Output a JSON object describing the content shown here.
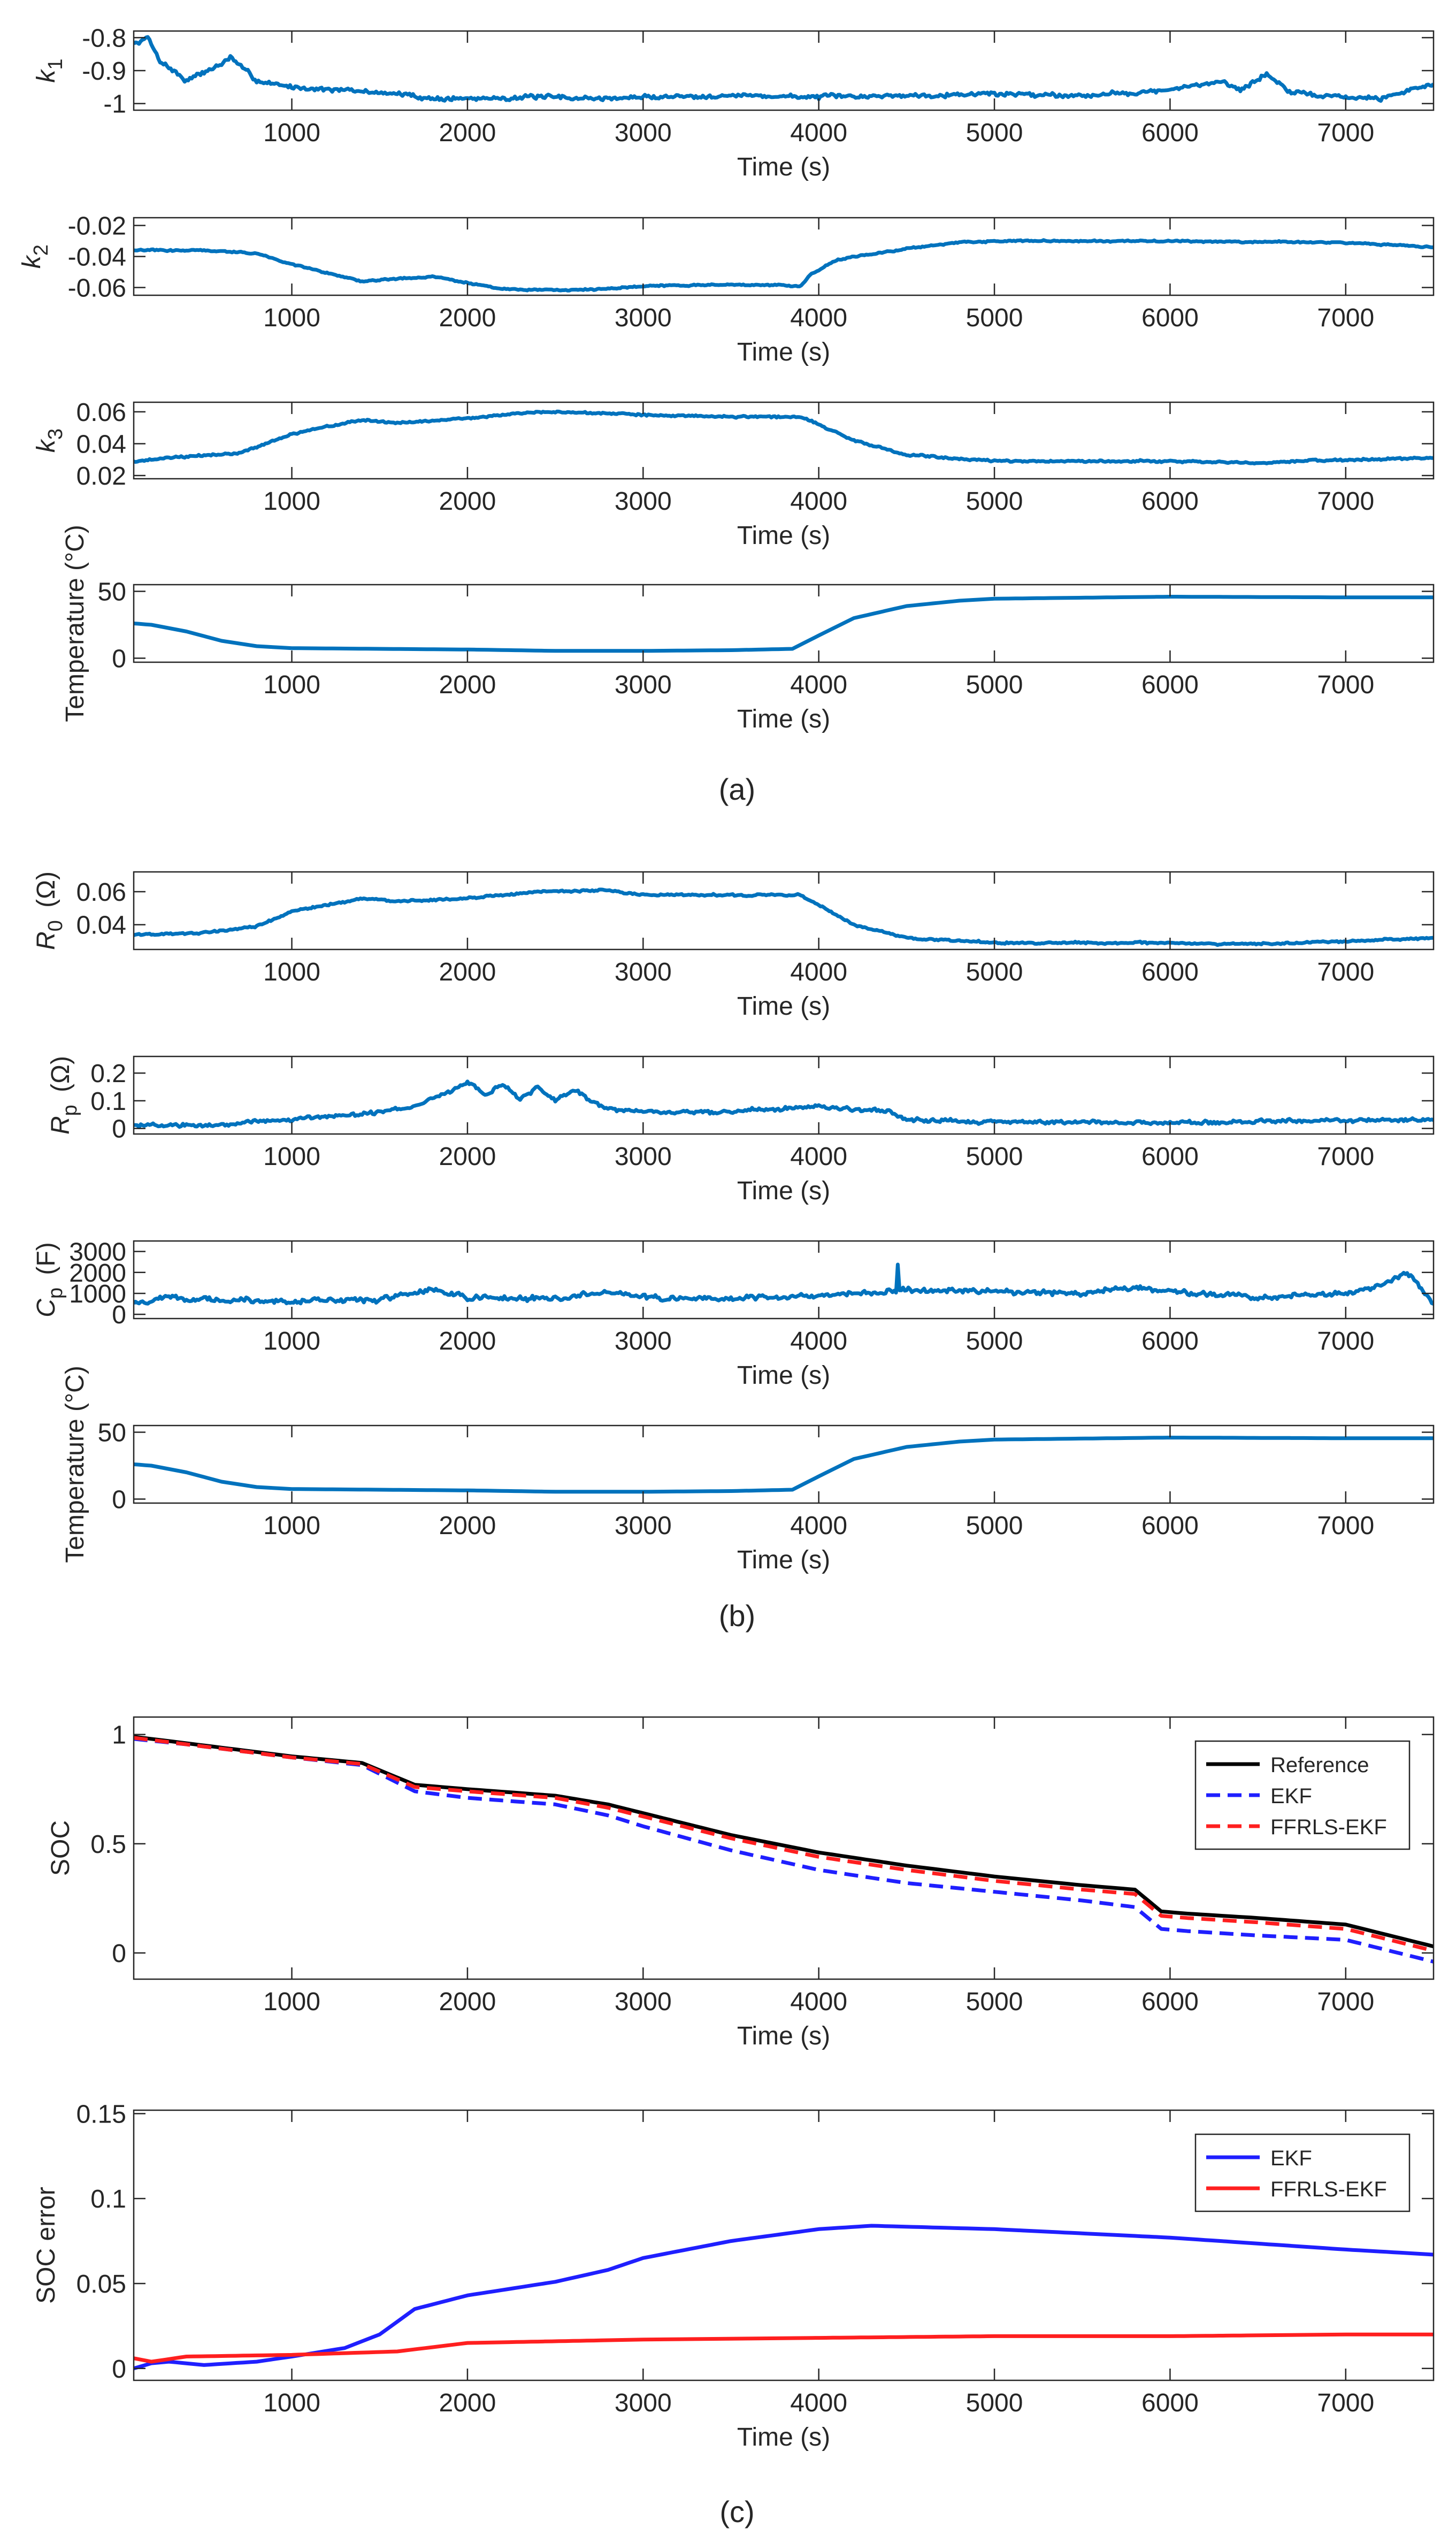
{
  "figure_labels": [
    "(a)",
    "(b)",
    "(c)"
  ],
  "colors": {
    "series_blue": "#0072BD",
    "axis": "#262626",
    "reference": "#000000",
    "ekf": "#1f1fff",
    "ffrls": "#ff1f1f"
  },
  "chart_data": [
    {
      "id": "k1",
      "type": "line",
      "panel": "(a)",
      "xlabel": "Time (s)",
      "ylabel": "k",
      "ylabel_sub": "1",
      "ylabel_unit": "",
      "xlim": [
        100,
        7500
      ],
      "ylim": [
        -1.02,
        -0.78
      ],
      "xticks": [
        1000,
        2000,
        3000,
        4000,
        5000,
        6000,
        7000
      ],
      "yticks": [
        -1,
        -0.9,
        -0.8
      ],
      "ytick_labels": [
        "-1",
        "-0.9",
        "-0.8"
      ],
      "legend": null,
      "series": [
        {
          "style": "solid",
          "color": "#0072BD",
          "noise": 0.008,
          "x": [
            100,
            180,
            250,
            400,
            600,
            650,
            800,
            1000,
            1300,
            1600,
            1800,
            2000,
            2400,
            2800,
            3000,
            3500,
            4000,
            4500,
            5000,
            5500,
            6000,
            6300,
            6400,
            6550,
            6700,
            7000,
            7200,
            7350,
            7500
          ],
          "y": [
            -0.82,
            -0.8,
            -0.87,
            -0.93,
            -0.88,
            -0.86,
            -0.93,
            -0.95,
            -0.96,
            -0.97,
            -0.985,
            -0.985,
            -0.98,
            -0.985,
            -0.98,
            -0.975,
            -0.98,
            -0.975,
            -0.97,
            -0.975,
            -0.96,
            -0.93,
            -0.96,
            -0.91,
            -0.97,
            -0.98,
            -0.985,
            -0.96,
            -0.94
          ]
        }
      ]
    },
    {
      "id": "k2",
      "type": "line",
      "panel": "(a)",
      "xlabel": "Time (s)",
      "ylabel": "k",
      "ylabel_sub": "2",
      "ylabel_unit": "",
      "xlim": [
        100,
        7500
      ],
      "ylim": [
        -0.065,
        -0.015
      ],
      "xticks": [
        1000,
        2000,
        3000,
        4000,
        5000,
        6000,
        7000
      ],
      "yticks": [
        -0.06,
        -0.04,
        -0.02
      ],
      "ytick_labels": [
        "-0.06",
        "-0.04",
        "-0.02"
      ],
      "legend": null,
      "series": [
        {
          "style": "solid",
          "color": "#0072BD",
          "noise": 0.0006,
          "x": [
            100,
            500,
            800,
            1000,
            1400,
            1800,
            2000,
            2200,
            2500,
            2800,
            3000,
            3500,
            3900,
            3950,
            4100,
            4500,
            4800,
            5000,
            6000,
            7000,
            7500
          ],
          "y": [
            -0.036,
            -0.036,
            -0.038,
            -0.045,
            -0.056,
            -0.053,
            -0.057,
            -0.061,
            -0.062,
            -0.061,
            -0.059,
            -0.058,
            -0.059,
            -0.052,
            -0.042,
            -0.035,
            -0.031,
            -0.03,
            -0.03,
            -0.031,
            -0.034
          ]
        }
      ]
    },
    {
      "id": "k3",
      "type": "line",
      "panel": "(a)",
      "xlabel": "Time (s)",
      "ylabel": "k",
      "ylabel_sub": "3",
      "ylabel_unit": "",
      "xlim": [
        100,
        7500
      ],
      "ylim": [
        0.018,
        0.066
      ],
      "xticks": [
        1000,
        2000,
        3000,
        4000,
        5000,
        6000,
        7000
      ],
      "yticks": [
        0.02,
        0.04,
        0.06
      ],
      "ytick_labels": [
        "0.02",
        "0.04",
        "0.06"
      ],
      "legend": null,
      "series": [
        {
          "style": "solid",
          "color": "#0072BD",
          "noise": 0.0007,
          "x": [
            100,
            400,
            700,
            1000,
            1400,
            1600,
            2000,
            2400,
            2800,
            3000,
            3500,
            3900,
            4000,
            4200,
            4500,
            5000,
            6000,
            6500,
            7000,
            7500
          ],
          "y": [
            0.029,
            0.032,
            0.034,
            0.046,
            0.055,
            0.053,
            0.056,
            0.06,
            0.059,
            0.058,
            0.057,
            0.057,
            0.052,
            0.042,
            0.033,
            0.029,
            0.029,
            0.028,
            0.03,
            0.031
          ]
        }
      ]
    },
    {
      "id": "temp_a",
      "type": "line",
      "panel": "(a)",
      "xlabel": "Time (s)",
      "ylabel": "Temperature (°C)",
      "ylabel_sub": "",
      "ylabel_unit": "",
      "xlim": [
        100,
        7500
      ],
      "ylim": [
        -3,
        55
      ],
      "xticks": [
        1000,
        2000,
        3000,
        4000,
        5000,
        6000,
        7000
      ],
      "yticks": [
        0,
        50
      ],
      "ytick_labels": [
        "0",
        "50"
      ],
      "legend": null,
      "series": [
        {
          "style": "solid",
          "color": "#0072BD",
          "noise": 0,
          "x": [
            100,
            200,
            400,
            600,
            800,
            1000,
            1500,
            2000,
            2500,
            3000,
            3500,
            3850,
            4000,
            4200,
            4500,
            4800,
            5000,
            6000,
            7000,
            7500
          ],
          "y": [
            26,
            25,
            20,
            13,
            9,
            7.5,
            7,
            6.5,
            5.5,
            5.5,
            6,
            7,
            17,
            30,
            39,
            43,
            44.5,
            46,
            45.5,
            45.5
          ]
        }
      ]
    },
    {
      "id": "r0",
      "type": "line",
      "panel": "(b)",
      "xlabel": "Time (s)",
      "ylabel": "R",
      "ylabel_sub": "0",
      "ylabel_unit": "(Ω)",
      "xlim": [
        100,
        7500
      ],
      "ylim": [
        0.025,
        0.072
      ],
      "xticks": [
        1000,
        2000,
        3000,
        4000,
        5000,
        6000,
        7000
      ],
      "yticks": [
        0.04,
        0.06
      ],
      "ytick_labels": [
        "0.04",
        "0.06"
      ],
      "legend": null,
      "series": [
        {
          "style": "solid",
          "color": "#0072BD",
          "noise": 0.0007,
          "x": [
            100,
            500,
            800,
            1000,
            1400,
            1600,
            2000,
            2400,
            2800,
            3000,
            3500,
            3900,
            4000,
            4200,
            4500,
            5000,
            6000,
            6400,
            7000,
            7500
          ],
          "y": [
            0.034,
            0.035,
            0.039,
            0.048,
            0.056,
            0.054,
            0.056,
            0.06,
            0.061,
            0.058,
            0.058,
            0.058,
            0.052,
            0.04,
            0.032,
            0.029,
            0.029,
            0.028,
            0.03,
            0.032
          ]
        }
      ]
    },
    {
      "id": "rp",
      "type": "line",
      "panel": "(b)",
      "xlabel": "Time (s)",
      "ylabel": "R",
      "ylabel_sub": "p",
      "ylabel_unit": "(Ω)",
      "xlim": [
        100,
        7500
      ],
      "ylim": [
        -0.02,
        0.26
      ],
      "xticks": [
        1000,
        2000,
        3000,
        4000,
        5000,
        6000,
        7000
      ],
      "yticks": [
        0,
        0.1,
        0.2
      ],
      "ytick_labels": [
        "0",
        "0.1",
        "0.2"
      ],
      "legend": null,
      "series": [
        {
          "style": "solid",
          "color": "#0072BD",
          "noise": 0.008,
          "x": [
            100,
            600,
            1000,
            1400,
            1700,
            1900,
            2000,
            2100,
            2200,
            2300,
            2400,
            2500,
            2600,
            2800,
            3000,
            3500,
            4000,
            4400,
            4500,
            5000,
            6000,
            7000,
            7500
          ],
          "y": [
            0.01,
            0.015,
            0.035,
            0.05,
            0.08,
            0.13,
            0.17,
            0.12,
            0.16,
            0.11,
            0.15,
            0.1,
            0.14,
            0.07,
            0.06,
            0.06,
            0.08,
            0.06,
            0.03,
            0.025,
            0.02,
            0.03,
            0.03
          ]
        }
      ]
    },
    {
      "id": "cp",
      "type": "line",
      "panel": "(b)",
      "xlabel": "Time (s)",
      "ylabel": "C",
      "ylabel_sub": "p",
      "ylabel_unit": "(F)",
      "xlim": [
        100,
        7500
      ],
      "ylim": [
        -200,
        3500
      ],
      "xticks": [
        1000,
        2000,
        3000,
        4000,
        5000,
        6000,
        7000
      ],
      "yticks": [
        0,
        1000,
        2000,
        3000
      ],
      "ytick_labels": [
        "0",
        "1000",
        "2000",
        "3000"
      ],
      "legend": null,
      "series": [
        {
          "style": "solid",
          "color": "#0072BD",
          "noise": 140,
          "x": [
            100,
            300,
            600,
            1000,
            1500,
            1800,
            2000,
            2500,
            2800,
            3000,
            3500,
            4000,
            4440,
            4450,
            4460,
            5000,
            5500,
            5800,
            6000,
            6500,
            7000,
            7200,
            7350,
            7500
          ],
          "y": [
            500,
            800,
            700,
            600,
            700,
            1200,
            800,
            750,
            1100,
            800,
            750,
            900,
            1100,
            2400,
            1150,
            1100,
            1000,
            1300,
            1100,
            800,
            1000,
            1300,
            2000,
            500
          ]
        }
      ]
    },
    {
      "id": "temp_b",
      "type": "line",
      "panel": "(b)",
      "xlabel": "Time (s)",
      "ylabel": "Temperature (°C)",
      "ylabel_sub": "",
      "ylabel_unit": "",
      "xlim": [
        100,
        7500
      ],
      "ylim": [
        -3,
        55
      ],
      "xticks": [
        1000,
        2000,
        3000,
        4000,
        5000,
        6000,
        7000
      ],
      "yticks": [
        0,
        50
      ],
      "ytick_labels": [
        "0",
        "50"
      ],
      "legend": null,
      "series": [
        {
          "style": "solid",
          "color": "#0072BD",
          "noise": 0,
          "x": [
            100,
            200,
            400,
            600,
            800,
            1000,
            1500,
            2000,
            2500,
            3000,
            3500,
            3850,
            4000,
            4200,
            4500,
            4800,
            5000,
            6000,
            7000,
            7500
          ],
          "y": [
            26,
            25,
            20,
            13,
            9,
            7.5,
            7,
            6.5,
            5.5,
            5.5,
            6,
            7,
            17,
            30,
            39,
            43,
            44.5,
            46,
            45.5,
            45.5
          ]
        }
      ]
    },
    {
      "id": "soc",
      "type": "line",
      "panel": "(c)",
      "xlabel": "Time (s)",
      "ylabel": "SOC",
      "ylabel_sub": "",
      "ylabel_unit": "",
      "xlim": [
        100,
        7500
      ],
      "ylim": [
        -0.12,
        1.08
      ],
      "xticks": [
        1000,
        2000,
        3000,
        4000,
        5000,
        6000,
        7000
      ],
      "yticks": [
        0,
        0.5,
        1
      ],
      "ytick_labels": [
        "0",
        "0.5",
        "1"
      ],
      "legend": {
        "placement": "top-right",
        "entries": [
          "Reference",
          "EKF",
          "FFRLS-EKF"
        ]
      },
      "series": [
        {
          "name": "Reference",
          "style": "solid",
          "color": "#000000",
          "noise": 0,
          "x": [
            100,
            400,
            800,
            1000,
            1400,
            1700,
            2000,
            2500,
            2800,
            3000,
            3500,
            4000,
            4500,
            5000,
            5500,
            5800,
            5950,
            6100,
            6500,
            7000,
            7200,
            7500
          ],
          "y": [
            0.99,
            0.96,
            0.92,
            0.9,
            0.87,
            0.77,
            0.75,
            0.72,
            0.68,
            0.64,
            0.54,
            0.46,
            0.4,
            0.35,
            0.31,
            0.29,
            0.19,
            0.18,
            0.16,
            0.13,
            0.09,
            0.03
          ]
        },
        {
          "name": "EKF",
          "style": "dashed",
          "color": "#1f1fff",
          "noise": 0,
          "x": [
            100,
            400,
            800,
            1000,
            1400,
            1700,
            2000,
            2500,
            2800,
            3000,
            3500,
            4000,
            4500,
            5000,
            5500,
            5800,
            5950,
            6100,
            6500,
            7000,
            7200,
            7500
          ],
          "y": [
            0.98,
            0.955,
            0.915,
            0.895,
            0.86,
            0.74,
            0.71,
            0.68,
            0.63,
            0.58,
            0.47,
            0.38,
            0.32,
            0.28,
            0.24,
            0.21,
            0.11,
            0.1,
            0.08,
            0.06,
            0.02,
            -0.04
          ]
        },
        {
          "name": "FFRLS-EKF",
          "style": "dashed",
          "color": "#ff1f1f",
          "noise": 0,
          "x": [
            100,
            400,
            800,
            1000,
            1400,
            1700,
            2000,
            2500,
            2800,
            3000,
            3500,
            4000,
            4500,
            5000,
            5500,
            5800,
            5950,
            6100,
            6500,
            7000,
            7200,
            7500
          ],
          "y": [
            0.985,
            0.955,
            0.915,
            0.895,
            0.865,
            0.76,
            0.74,
            0.71,
            0.665,
            0.625,
            0.525,
            0.44,
            0.38,
            0.33,
            0.29,
            0.27,
            0.17,
            0.16,
            0.14,
            0.11,
            0.07,
            0.01
          ]
        }
      ]
    },
    {
      "id": "soc_error",
      "type": "line",
      "panel": "(c)",
      "xlabel": "Time (s)",
      "ylabel": "SOC error",
      "ylabel_sub": "",
      "ylabel_unit": "",
      "xlim": [
        100,
        7500
      ],
      "ylim": [
        -0.007,
        0.152
      ],
      "xticks": [
        1000,
        2000,
        3000,
        4000,
        5000,
        6000,
        7000
      ],
      "yticks": [
        0,
        0.05,
        0.1,
        0.15
      ],
      "ytick_labels": [
        "0",
        "0.05",
        "0.1",
        "0.15"
      ],
      "legend": {
        "placement": "top-right",
        "entries": [
          "EKF",
          "FFRLS-EKF"
        ]
      },
      "series": [
        {
          "name": "EKF",
          "style": "solid",
          "color": "#1f1fff",
          "noise": 0,
          "x": [
            100,
            200,
            300,
            500,
            800,
            1000,
            1300,
            1500,
            1700,
            2000,
            2500,
            2800,
            3000,
            3500,
            4000,
            4300,
            5000,
            6000,
            7000,
            7500
          ],
          "y": [
            0.0,
            0.003,
            0.004,
            0.002,
            0.004,
            0.007,
            0.012,
            0.02,
            0.035,
            0.043,
            0.051,
            0.058,
            0.065,
            0.075,
            0.082,
            0.084,
            0.082,
            0.077,
            0.07,
            0.067
          ]
        },
        {
          "name": "FFRLS-EKF",
          "style": "solid",
          "color": "#ff1f1f",
          "noise": 0,
          "x": [
            100,
            200,
            400,
            1000,
            1600,
            2000,
            3000,
            4000,
            5000,
            6000,
            7000,
            7500
          ],
          "y": [
            0.006,
            0.004,
            0.007,
            0.008,
            0.01,
            0.015,
            0.017,
            0.018,
            0.019,
            0.019,
            0.02,
            0.02
          ]
        }
      ]
    }
  ]
}
